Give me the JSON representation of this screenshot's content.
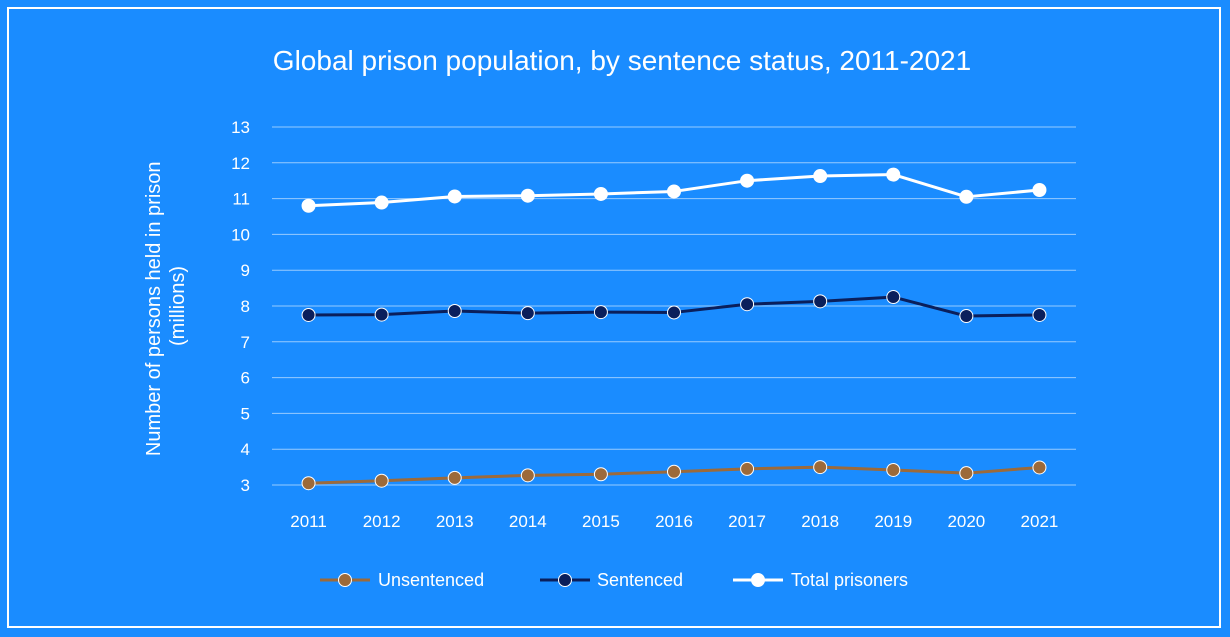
{
  "chart_data": {
    "type": "line",
    "title": "Global prison population, by sentence status, 2011-2021",
    "ylabel_line1": "Number of persons held in prison",
    "ylabel_line2": "(millions)",
    "xlabel": "",
    "x": [
      "2011",
      "2012",
      "2013",
      "2014",
      "2015",
      "2016",
      "2017",
      "2018",
      "2019",
      "2020",
      "2021"
    ],
    "ylim": [
      3,
      13
    ],
    "yticks": [
      3,
      4,
      5,
      6,
      7,
      8,
      9,
      10,
      11,
      12,
      13
    ],
    "grid": true,
    "legend_position": "bottom",
    "series": [
      {
        "name": "Unsentenced",
        "color": "#9c6a3a",
        "values": [
          3.05,
          3.12,
          3.2,
          3.27,
          3.3,
          3.37,
          3.45,
          3.5,
          3.42,
          3.33,
          3.49
        ]
      },
      {
        "name": "Sentenced",
        "color": "#0a1f5c",
        "values": [
          7.75,
          7.76,
          7.86,
          7.8,
          7.83,
          7.82,
          8.05,
          8.13,
          8.25,
          7.72,
          7.75
        ]
      },
      {
        "name": "Total prisoners",
        "color": "#ffffff",
        "values": [
          10.8,
          10.89,
          11.06,
          11.08,
          11.13,
          11.2,
          11.5,
          11.63,
          11.67,
          11.05,
          11.24
        ]
      }
    ]
  }
}
